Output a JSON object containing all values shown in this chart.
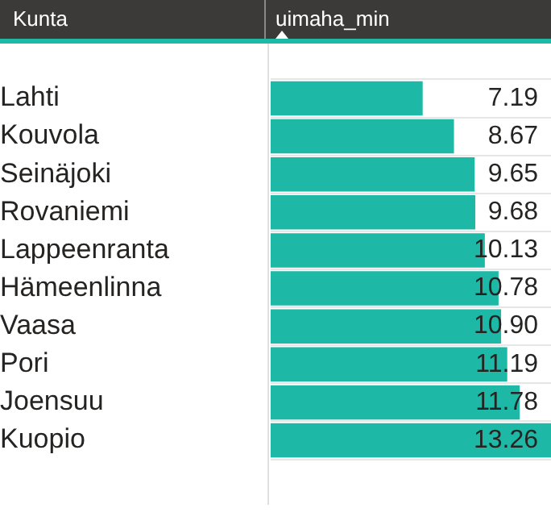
{
  "chart_data": {
    "type": "bar",
    "orientation": "horizontal",
    "ylabel": "Kunta",
    "xlabel": "uimaha_min",
    "categories": [
      "Lahti",
      "Kouvola",
      "Seinäjoki",
      "Rovaniemi",
      "Lappeenranta",
      "Hämeenlinna",
      "Vaasa",
      "Pori",
      "Joensuu",
      "Kuopio"
    ],
    "values": [
      7.19,
      8.67,
      9.65,
      9.68,
      10.13,
      10.78,
      10.9,
      11.19,
      11.78,
      13.26
    ],
    "value_labels": [
      "7.19",
      "8.67",
      "9.65",
      "9.68",
      "10.13",
      "10.78",
      "10.90",
      "11.19",
      "11.78",
      "13.26"
    ],
    "color": "#1db9a6",
    "grid": "y",
    "legend": false
  }
}
